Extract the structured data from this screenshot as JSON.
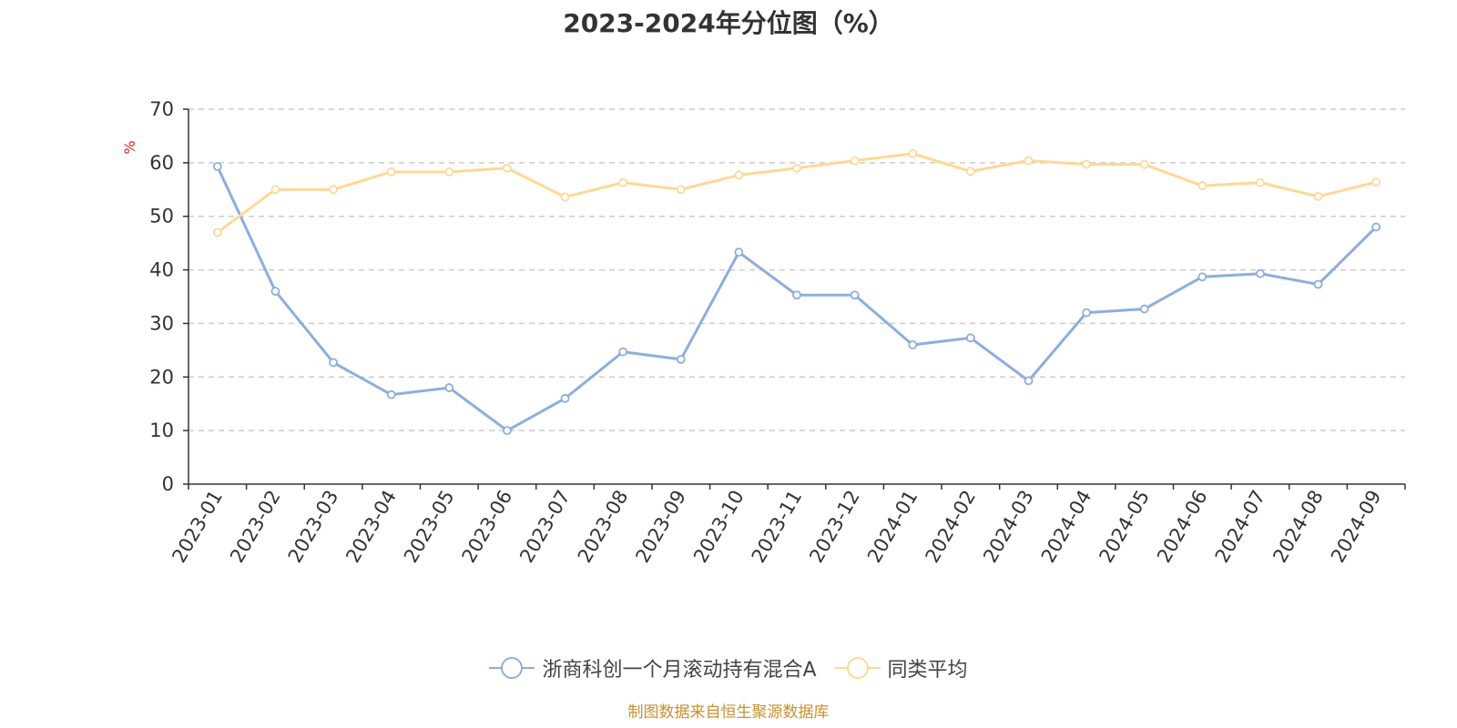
{
  "chart_data": {
    "type": "line",
    "title": "2023-2024年分位图（%）",
    "ylabel": "%",
    "xlabel": "",
    "ylim": [
      0,
      70
    ],
    "yticks": [
      0,
      10,
      20,
      30,
      40,
      50,
      60,
      70
    ],
    "grid": true,
    "legend_position": "bottom",
    "categories": [
      "2023-01",
      "2023-02",
      "2023-03",
      "2023-04",
      "2023-05",
      "2023-06",
      "2023-07",
      "2023-08",
      "2023-09",
      "2023-10",
      "2023-11",
      "2023-12",
      "2024-01",
      "2024-02",
      "2024-03",
      "2024-04",
      "2024-05",
      "2024-06",
      "2024-07",
      "2024-08",
      "2024-09"
    ],
    "series": [
      {
        "name": "浙商科创一个月滚动持有混合A",
        "color": "#8eaedb",
        "values": [
          59.3,
          36.0,
          22.7,
          16.7,
          18.0,
          10.0,
          16.0,
          24.7,
          23.3,
          43.3,
          35.3,
          35.3,
          26.0,
          27.3,
          19.3,
          32.0,
          32.7,
          38.7,
          39.3,
          37.3,
          48.0
        ]
      },
      {
        "name": "同类平均",
        "color": "#fdd996",
        "values": [
          47.0,
          55.0,
          55.0,
          58.3,
          58.3,
          59.0,
          53.6,
          56.3,
          55.0,
          57.7,
          59.0,
          60.4,
          61.7,
          58.4,
          60.4,
          59.7,
          59.7,
          55.7,
          56.3,
          53.7,
          56.4
        ]
      }
    ],
    "source_note": "制图数据来自恒生聚源数据库"
  }
}
